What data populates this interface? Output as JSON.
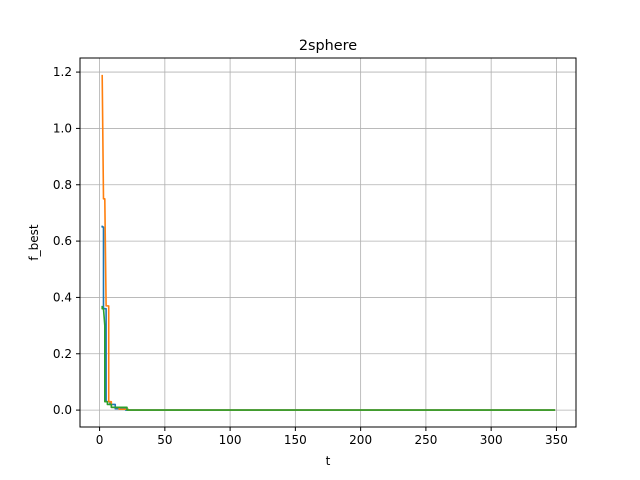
{
  "chart_data": {
    "type": "line",
    "title": "2sphere",
    "xlabel": "t",
    "ylabel": "f_best",
    "xlim": [
      -15,
      365
    ],
    "ylim": [
      -0.06,
      1.25
    ],
    "xticks": [
      0,
      50,
      100,
      150,
      200,
      250,
      300,
      350
    ],
    "xtick_labels": [
      "0",
      "50",
      "100",
      "150",
      "200",
      "250",
      "300",
      "350"
    ],
    "yticks": [
      0.0,
      0.2,
      0.4,
      0.6,
      0.8,
      1.0,
      1.2
    ],
    "ytick_labels": [
      "0.0",
      "0.2",
      "0.4",
      "0.6",
      "0.8",
      "1.0",
      "1.2"
    ],
    "grid": true,
    "legend": "none",
    "series": [
      {
        "color": "#1f77b4",
        "x": [
          2,
          2,
          3,
          3,
          5,
          5,
          8,
          8,
          12,
          12,
          20,
          20,
          349
        ],
        "y": [
          0.655,
          0.65,
          0.65,
          0.36,
          0.36,
          0.03,
          0.03,
          0.02,
          0.02,
          0.005,
          0.005,
          0.0,
          0.0
        ]
      },
      {
        "color": "#ff7f0e",
        "x": [
          2,
          3,
          4,
          5,
          5,
          7,
          7,
          9,
          9,
          15,
          15,
          22,
          22,
          349
        ],
        "y": [
          1.19,
          0.75,
          0.75,
          0.37,
          0.37,
          0.37,
          0.03,
          0.03,
          0.01,
          0.01,
          0.003,
          0.003,
          0.0,
          0.0
        ]
      },
      {
        "color": "#2ca02c",
        "x": [
          2,
          2,
          3,
          4,
          4,
          6,
          6,
          9,
          9,
          21,
          21,
          349
        ],
        "y": [
          0.37,
          0.36,
          0.36,
          0.3,
          0.03,
          0.03,
          0.02,
          0.02,
          0.01,
          0.01,
          0.0,
          0.0
        ]
      }
    ]
  }
}
